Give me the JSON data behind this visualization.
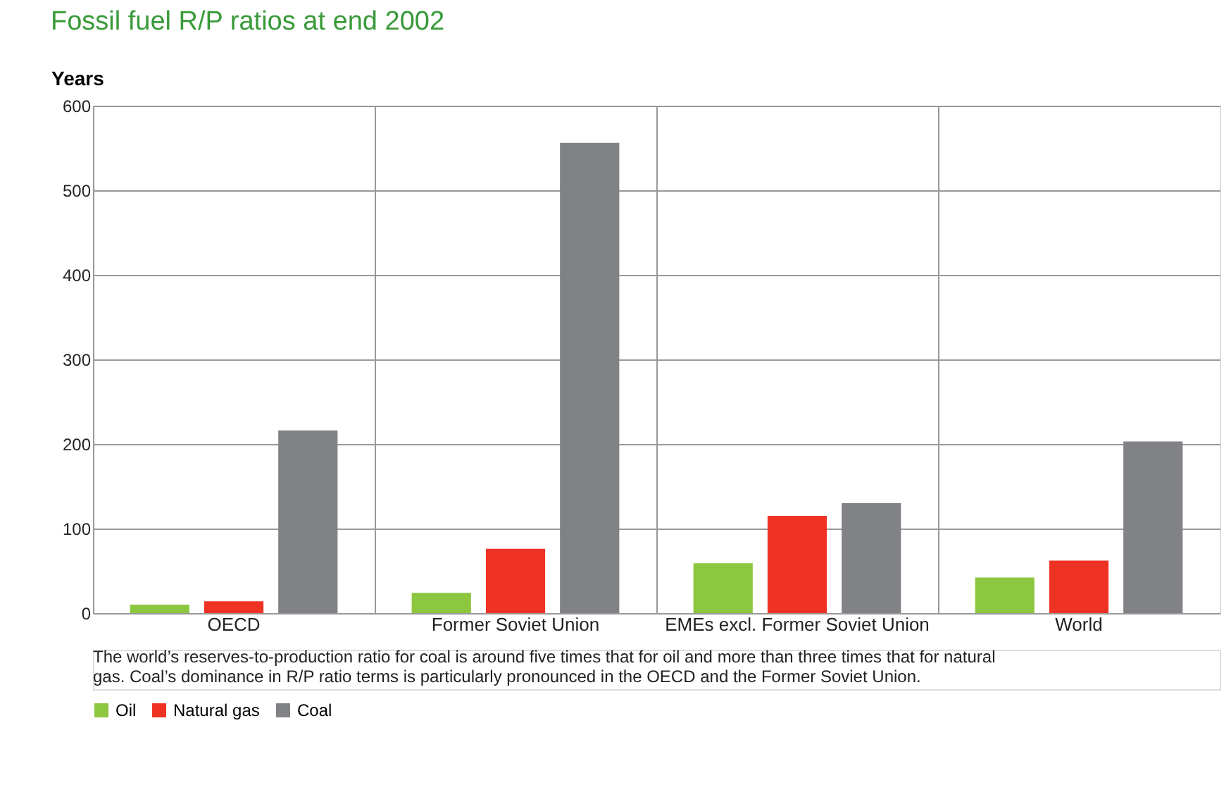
{
  "chart_data": {
    "type": "bar",
    "title": "Fossil fuel R/P ratios at end 2002",
    "ylabel": "Years",
    "categories": [
      "OECD",
      "Former Soviet Union",
      "EMEs excl. Former Soviet Union",
      "World"
    ],
    "series": [
      {
        "name": "Oil",
        "color": "#8dc63f",
        "values": [
          10,
          24,
          59,
          42
        ]
      },
      {
        "name": "Natural gas",
        "color": "#ee3224",
        "values": [
          14,
          76,
          115,
          62
        ]
      },
      {
        "name": "Coal",
        "color": "#808285",
        "values": [
          216,
          556,
          130,
          203
        ]
      }
    ],
    "ylim": [
      0,
      600
    ],
    "yticks": [
      0,
      100,
      200,
      300,
      400,
      500,
      600
    ],
    "grid": true,
    "legend": "bottom left",
    "annotations": [
      "The world’s reserves-to-production ratio for coal is around five times that for oil and more than three times that for natural gas. Coal’s dominance in R/P ratio terms is particularly pronounced in the OECD and the Former Soviet Union."
    ]
  }
}
